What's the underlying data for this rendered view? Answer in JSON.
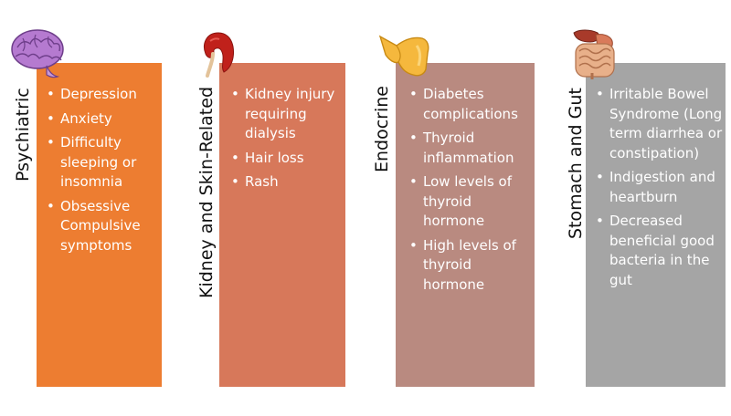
{
  "categories": [
    {
      "label": "Psychiatric",
      "color": "#ed7d31",
      "icon": "brain-icon",
      "items": [
        "Depression",
        "Anxiety",
        "Difficulty sleeping or insomnia",
        "Obsessive Compulsive symptoms"
      ]
    },
    {
      "label": "Kidney and Skin-Related",
      "color": "#d7785a",
      "icon": "kidney-icon",
      "items": [
        "Kidney injury requiring dialysis",
        "Hair loss",
        "Rash"
      ]
    },
    {
      "label": "Endocrine",
      "color": "#b98a80",
      "icon": "thyroid-gland-icon",
      "items": [
        "Diabetes complications",
        "Thyroid inflammation",
        "Low levels of thyroid hormone",
        "High levels of thyroid hormone"
      ]
    },
    {
      "label": "Stomach and Gut",
      "color": "#a5a5a5",
      "icon": "digestive-system-icon",
      "items": [
        "Irritable Bowel Syndrome (Long term diarrhea or constipation)",
        "Indigestion and heartburn",
        "Decreased beneficial good bacteria in the gut"
      ]
    }
  ]
}
